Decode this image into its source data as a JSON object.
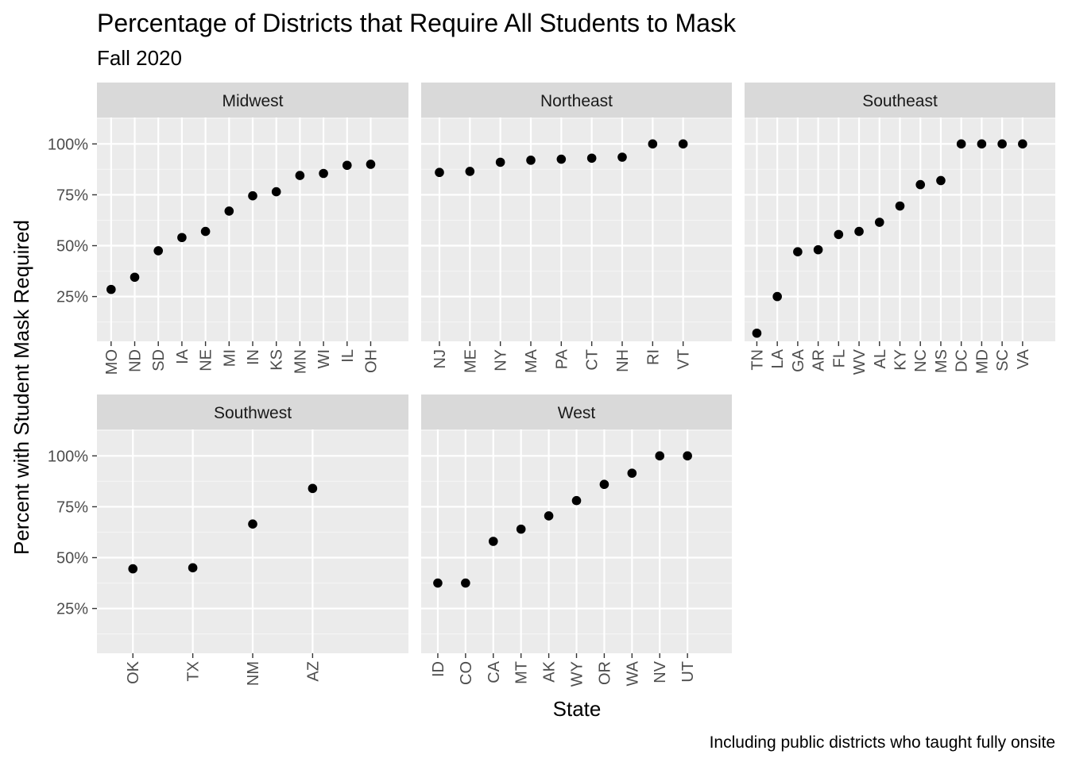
{
  "chart_data": {
    "type": "scatter",
    "title": "Percentage of Districts that Require All Students to Mask",
    "subtitle": "Fall 2020",
    "xlabel": "State",
    "ylabel": "Percent with Student Mask Required",
    "caption": "Including public districts who taught fully onsite",
    "y_ticks": [
      "25%",
      "50%",
      "75%",
      "100%"
    ],
    "y_tick_values": [
      25,
      50,
      75,
      100
    ],
    "ylim": [
      3,
      113
    ],
    "grid": true,
    "panels": [
      {
        "name": "Midwest",
        "categories": [
          "MO",
          "ND",
          "SD",
          "IA",
          "NE",
          "MI",
          "IN",
          "KS",
          "MN",
          "WI",
          "IL",
          "OH"
        ],
        "values": [
          28.5,
          34.5,
          47.5,
          54,
          57,
          67,
          74.5,
          76.5,
          84.5,
          85.5,
          89.5,
          90
        ]
      },
      {
        "name": "Northeast",
        "categories": [
          "NJ",
          "ME",
          "NY",
          "MA",
          "PA",
          "CT",
          "NH",
          "RI",
          "VT"
        ],
        "values": [
          86,
          86.5,
          91,
          92,
          92.5,
          93,
          93.5,
          100,
          100
        ]
      },
      {
        "name": "Southeast",
        "categories": [
          "TN",
          "LA",
          "GA",
          "AR",
          "FL",
          "WV",
          "AL",
          "KY",
          "NC",
          "MS",
          "DC",
          "MD",
          "SC",
          "VA"
        ],
        "values": [
          7,
          25,
          47,
          48,
          55.5,
          57,
          61.5,
          69.5,
          80,
          82,
          100,
          100,
          100,
          100
        ]
      },
      {
        "name": "Southwest",
        "categories": [
          "OK",
          "TX",
          "NM",
          "AZ"
        ],
        "values": [
          44.5,
          45,
          66.5,
          84
        ]
      },
      {
        "name": "West",
        "categories": [
          "ID",
          "CO",
          "CA",
          "MT",
          "AK",
          "WY",
          "OR",
          "WA",
          "NV",
          "UT"
        ],
        "values": [
          37.5,
          37.5,
          58,
          64,
          70.5,
          78,
          86,
          91.5,
          100,
          100
        ]
      }
    ]
  }
}
